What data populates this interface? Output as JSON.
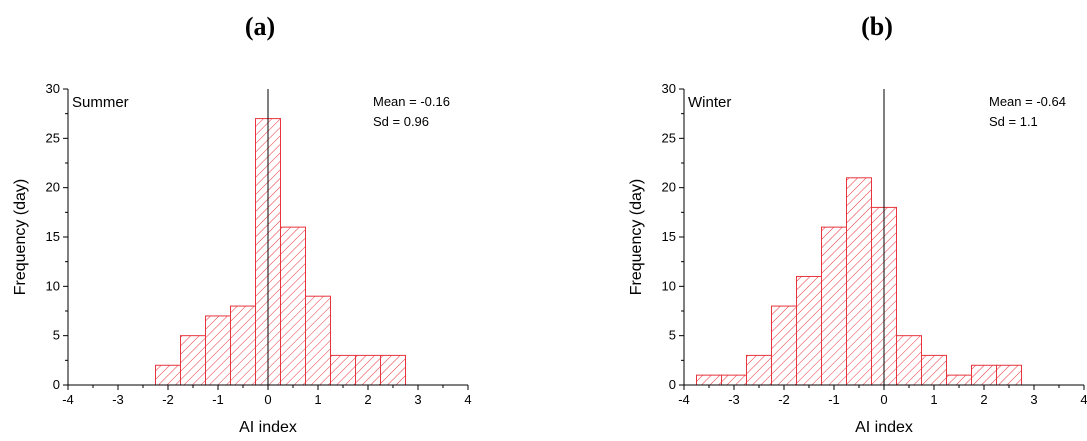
{
  "chart_data": [
    {
      "type": "bar",
      "panel_label": "(a)",
      "season": "Summer",
      "stats": {
        "mean": "Mean = -0.16",
        "sd": "Sd = 0.96"
      },
      "xlabel": "AI index",
      "ylabel": "Frequency (day)",
      "xlim": [
        -4,
        4
      ],
      "ylim": [
        0,
        30
      ],
      "xticks": [
        -4,
        -3,
        -2,
        -1,
        0,
        1,
        2,
        3,
        4
      ],
      "yticks": [
        0,
        5,
        10,
        15,
        20,
        25,
        30
      ],
      "bin_width": 0.5,
      "bins": [
        {
          "start": -2.25,
          "value": 2
        },
        {
          "start": -1.75,
          "value": 5
        },
        {
          "start": -1.25,
          "value": 7
        },
        {
          "start": -0.75,
          "value": 8
        },
        {
          "start": -0.25,
          "value": 27
        },
        {
          "start": 0.25,
          "value": 16
        },
        {
          "start": 0.75,
          "value": 9
        },
        {
          "start": 1.25,
          "value": 3
        },
        {
          "start": 1.75,
          "value": 3
        },
        {
          "start": 2.25,
          "value": 3
        }
      ],
      "bar_color": "#e8343c",
      "reference_line_x": 0
    },
    {
      "type": "bar",
      "panel_label": "(b)",
      "season": "Winter",
      "stats": {
        "mean": "Mean = -0.64",
        "sd": "Sd = 1.1"
      },
      "xlabel": "AI index",
      "ylabel": "Frequency (day)",
      "xlim": [
        -4,
        4
      ],
      "ylim": [
        0,
        30
      ],
      "xticks": [
        -4,
        -3,
        -2,
        -1,
        0,
        1,
        2,
        3,
        4
      ],
      "yticks": [
        0,
        5,
        10,
        15,
        20,
        25,
        30
      ],
      "bin_width": 0.5,
      "bins": [
        {
          "start": -3.75,
          "value": 1
        },
        {
          "start": -3.25,
          "value": 1
        },
        {
          "start": -2.75,
          "value": 3
        },
        {
          "start": -2.25,
          "value": 8
        },
        {
          "start": -1.75,
          "value": 11
        },
        {
          "start": -1.25,
          "value": 16
        },
        {
          "start": -0.75,
          "value": 21
        },
        {
          "start": -0.25,
          "value": 18
        },
        {
          "start": 0.25,
          "value": 5
        },
        {
          "start": 0.75,
          "value": 3
        },
        {
          "start": 1.25,
          "value": 1
        },
        {
          "start": 1.75,
          "value": 2
        },
        {
          "start": 2.25,
          "value": 2
        }
      ],
      "bar_color": "#e8343c",
      "reference_line_x": 0
    }
  ]
}
